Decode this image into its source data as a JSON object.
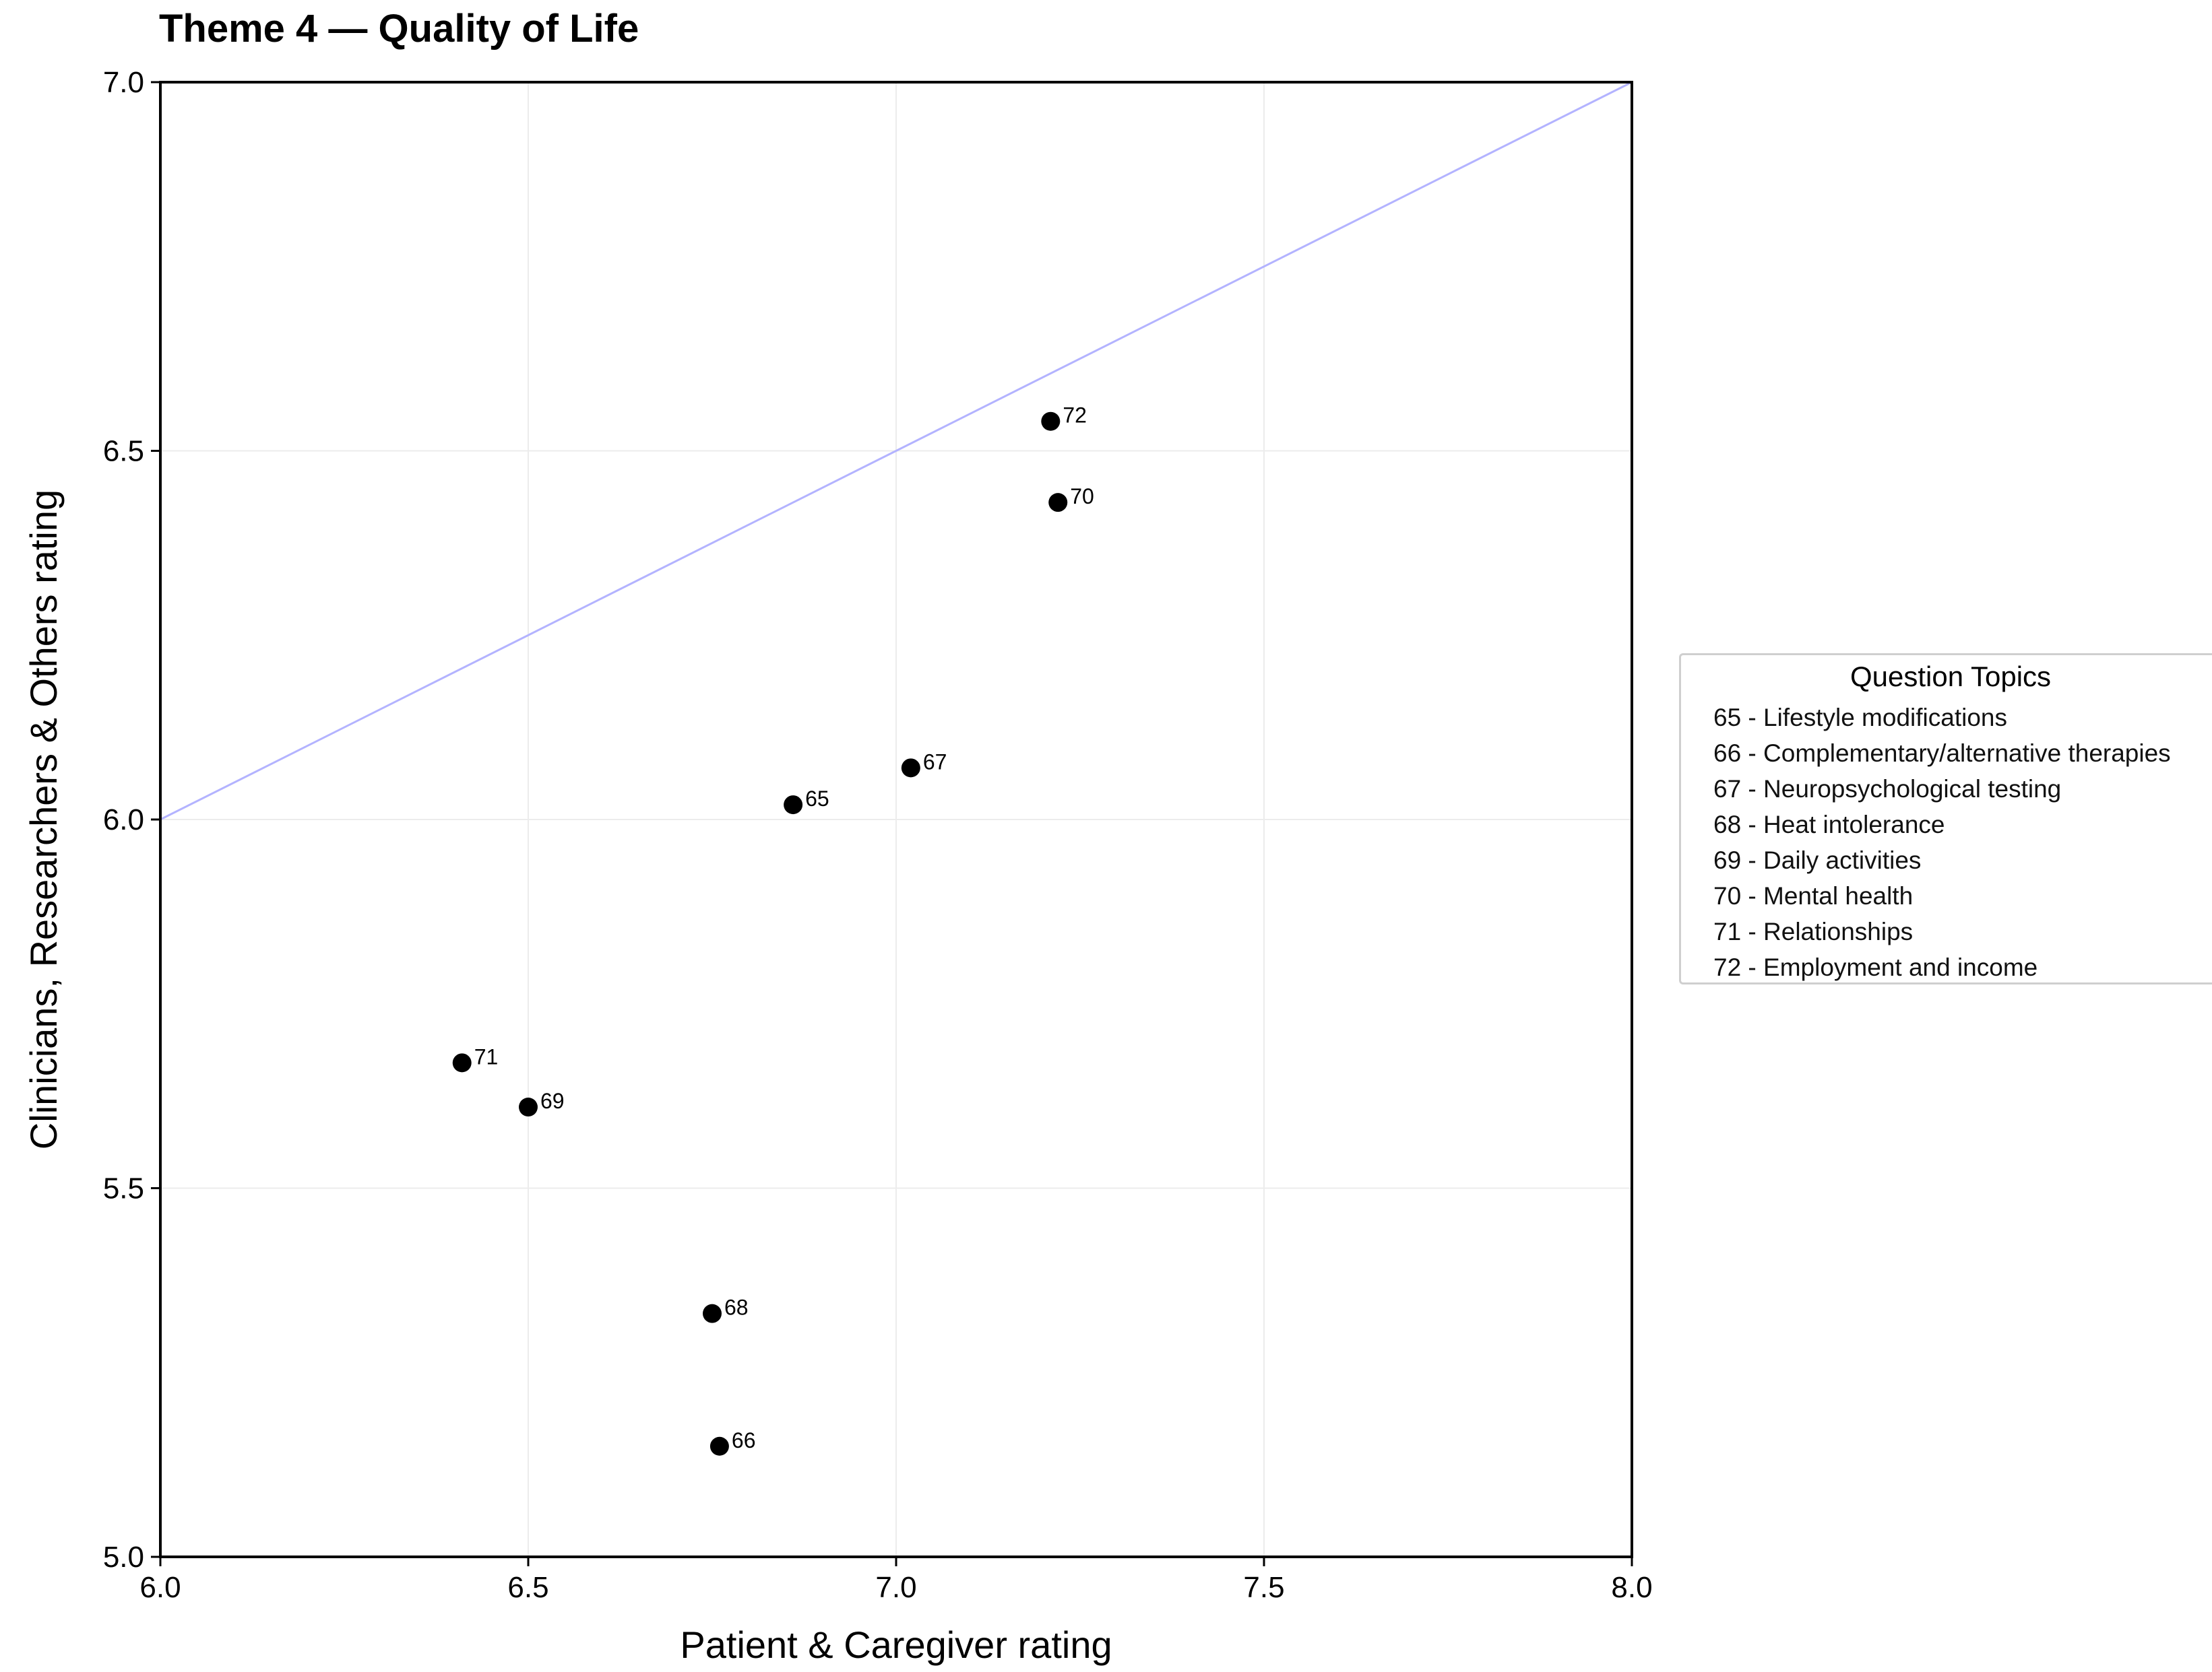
{
  "chart_data": {
    "type": "scatter",
    "title": "Theme 4 — Quality of Life",
    "xlabel": "Patient & Caregiver rating",
    "ylabel": "Clinicians, Researchers & Others rating",
    "xlim": [
      6.0,
      8.0
    ],
    "ylim": [
      5.0,
      7.0
    ],
    "xticks": [
      "6.0",
      "6.5",
      "7.0",
      "7.5",
      "8.0"
    ],
    "yticks": [
      "5.0",
      "5.5",
      "6.0",
      "6.5",
      "7.0"
    ],
    "grid": true,
    "reference_line": {
      "from": [
        6.0,
        6.0
      ],
      "to": [
        8.0,
        7.0
      ],
      "color": "#b3b3ff"
    },
    "points": [
      {
        "label": "65",
        "x": 6.86,
        "y": 6.02
      },
      {
        "label": "66",
        "x": 6.76,
        "y": 5.15
      },
      {
        "label": "67",
        "x": 7.02,
        "y": 6.07
      },
      {
        "label": "68",
        "x": 6.75,
        "y": 5.33
      },
      {
        "label": "69",
        "x": 6.5,
        "y": 5.61
      },
      {
        "label": "70",
        "x": 7.22,
        "y": 6.43
      },
      {
        "label": "71",
        "x": 6.41,
        "y": 5.67
      },
      {
        "label": "72",
        "x": 7.21,
        "y": 6.54
      }
    ],
    "point_color": "#000000",
    "legend": {
      "title": "Question Topics",
      "placement": "right",
      "entries": [
        "65 - Lifestyle modifications",
        "66 - Complementary/alternative therapies",
        "67 - Neuropsychological testing",
        "68 - Heat intolerance",
        "69 - Daily activities",
        "70 - Mental health",
        "71 - Relationships",
        "72 - Employment and income"
      ]
    }
  }
}
